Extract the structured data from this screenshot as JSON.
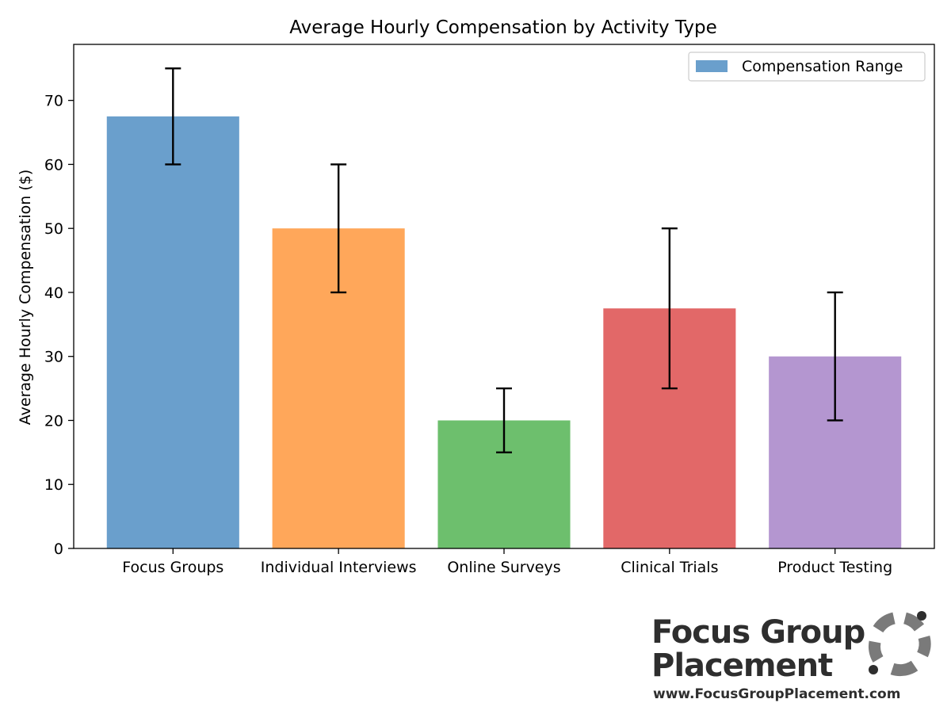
{
  "chart_data": {
    "type": "bar",
    "title": "Average Hourly Compensation by Activity Type",
    "xlabel": "",
    "ylabel": "Average Hourly Compensation ($)",
    "categories": [
      "Focus Groups",
      "Individual Interviews",
      "Online Surveys",
      "Clinical Trials",
      "Product Testing"
    ],
    "values": [
      67.5,
      50,
      20,
      37.5,
      30
    ],
    "ranges": [
      [
        60,
        75
      ],
      [
        40,
        60
      ],
      [
        15,
        25
      ],
      [
        25,
        50
      ],
      [
        20,
        40
      ]
    ],
    "colors": [
      "#6a9fcc",
      "#ffa75a",
      "#6dbf6d",
      "#e26868",
      "#b496d0"
    ],
    "yticks": [
      0,
      10,
      20,
      30,
      40,
      50,
      60,
      70
    ],
    "ylim": [
      0,
      78.75
    ],
    "legend": {
      "label": "Compensation Range",
      "position": "top-right",
      "color": "#6a9fcc"
    },
    "grid": false
  },
  "branding": {
    "line1": "Focus Group",
    "line2": "Placement",
    "url": "www.FocusGroupPlacement.com"
  }
}
